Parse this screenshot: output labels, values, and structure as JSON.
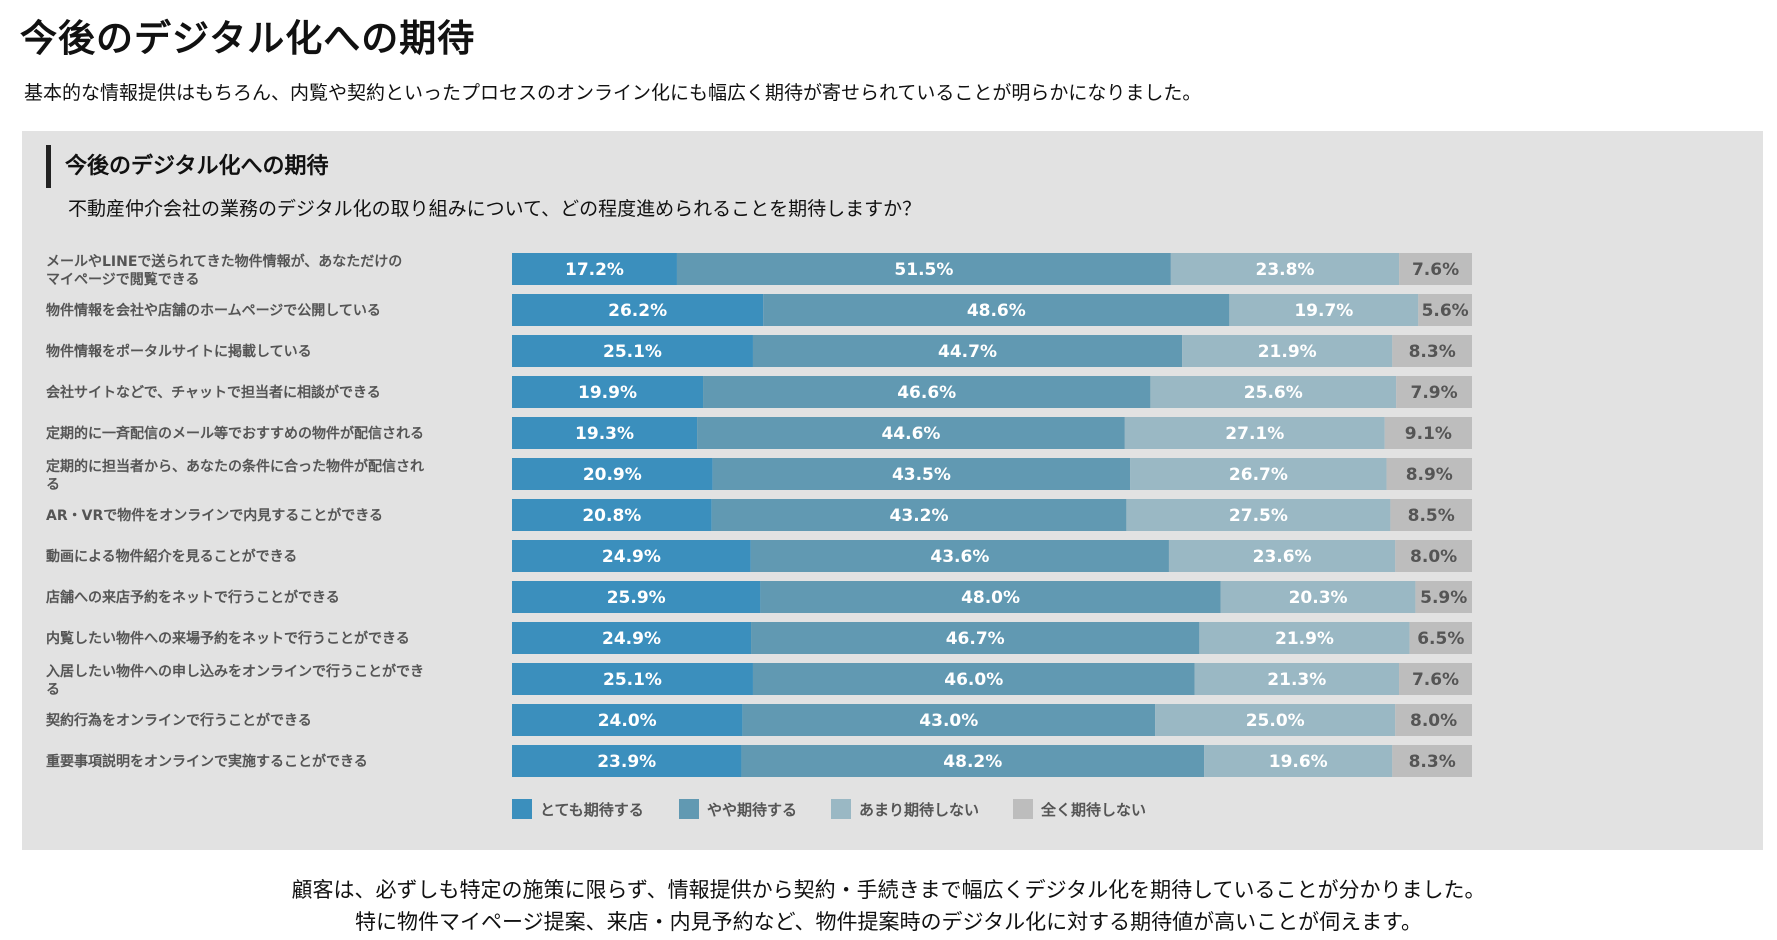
{
  "page": {
    "title": "今後のデジタル化への期待",
    "lead": "基本的な情報提供はもちろん、内覧や契約といったプロセスのオンライン化にも幅広く期待が寄せられていることが明らかになりました。",
    "footer_line1": "顧客は、必ずしも特定の施策に限らず、情報提供から契約・手続きまで幅広くデジタル化を期待していることが分かりました。",
    "footer_line2": "特に物件マイページ提案、来店・内見予約など、物件提案時のデジタル化に対する期待値が高いことが伺えます。"
  },
  "colors": {
    "panel_bg": "#e2e2e2",
    "series": [
      "#3b8fbd",
      "#6199b2",
      "#9ab8c4",
      "#bdbdbd"
    ]
  },
  "chart_data": {
    "type": "bar",
    "orientation": "horizontal",
    "stacked": true,
    "percent": true,
    "title": "今後のデジタル化への期待",
    "subtitle": "不動産仲介会社の業務のデジタル化の取り組みについて、どの程度進められることを期待しますか？",
    "legend_position": "bottom",
    "xlim": [
      0,
      100
    ],
    "categories": [
      "メールやLINEで送られてきた物件情報が、あなただけのマイページで閲覧できる",
      "物件情報を会社や店舗のホームページで公開している",
      "物件情報をポータルサイトに掲載している",
      "会社サイトなどで、チャットで担当者に相談ができる",
      "定期的に一斉配信のメール等でおすすめの物件が配信される",
      "定期的に担当者から、あなたの条件に合った物件が配信される",
      "AR・VRで物件をオンラインで内見することができる",
      "動画による物件紹介を見ることができる",
      "店舗への来店予約をネットで行うことができる",
      "内覧したい物件への来場予約をネットで行うことができる",
      "入居したい物件への申し込みをオンラインで行うことができる",
      "契約行為をオンラインで行うことができる",
      "重要事項説明をオンラインで実施することができる"
    ],
    "series": [
      {
        "name": "とても期待する",
        "values": [
          17.2,
          26.2,
          25.1,
          19.9,
          19.3,
          20.9,
          20.8,
          24.9,
          25.9,
          24.9,
          25.1,
          24.0,
          23.9
        ]
      },
      {
        "name": "やや期待する",
        "values": [
          51.5,
          48.6,
          44.7,
          46.6,
          44.6,
          43.5,
          43.2,
          43.6,
          48.0,
          46.7,
          46.0,
          43.0,
          48.2
        ]
      },
      {
        "name": "あまり期待しない",
        "values": [
          23.8,
          19.7,
          21.9,
          25.6,
          27.1,
          26.7,
          27.5,
          23.6,
          20.3,
          21.9,
          21.3,
          25.0,
          19.6
        ]
      },
      {
        "name": "全く期待しない",
        "values": [
          7.6,
          5.6,
          8.3,
          7.9,
          9.1,
          8.9,
          8.5,
          8.0,
          5.9,
          6.5,
          7.6,
          8.0,
          8.3
        ]
      }
    ]
  }
}
